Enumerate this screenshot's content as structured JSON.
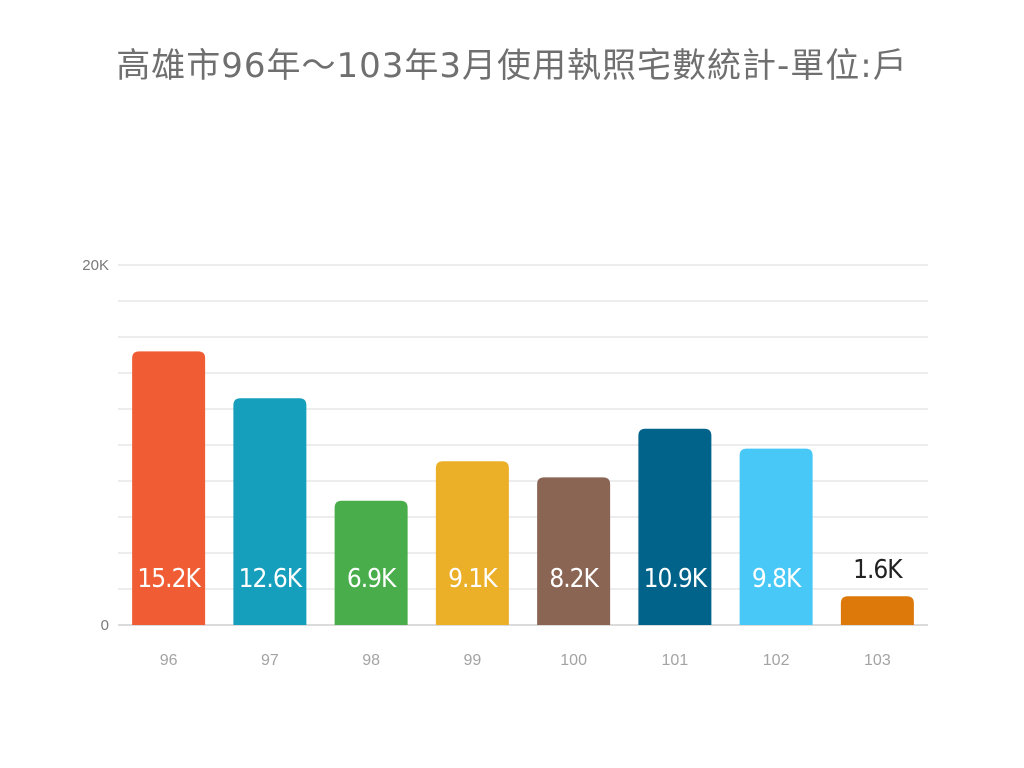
{
  "page": {
    "title": "高雄市96年～103年3月使用執照宅數統計-單位:戶"
  },
  "chart_data": {
    "type": "bar",
    "title": "高雄市96年～103年3月使用執照宅數統計-單位:戶",
    "xlabel": "",
    "ylabel": "",
    "categories": [
      "96",
      "97",
      "98",
      "99",
      "100",
      "101",
      "102",
      "103"
    ],
    "values": [
      15200,
      12600,
      6900,
      9100,
      8200,
      10900,
      9800,
      1600
    ],
    "data_labels": [
      "15.2K",
      "12.6K",
      "6.9K",
      "9.1K",
      "8.2K",
      "10.9K",
      "9.8K",
      "1.6K"
    ],
    "colors": [
      "#f05d34",
      "#169fbc",
      "#48ad4a",
      "#ebaf28",
      "#8a6553",
      "#01628a",
      "#48c8f7",
      "#dc790a"
    ],
    "ylim": [
      0,
      20000
    ],
    "y_ticks": [
      {
        "value": 0,
        "label": "0"
      },
      {
        "value": 20000,
        "label": "20K"
      }
    ],
    "minor_gridlines": 10,
    "grid": true,
    "legend": "none"
  }
}
